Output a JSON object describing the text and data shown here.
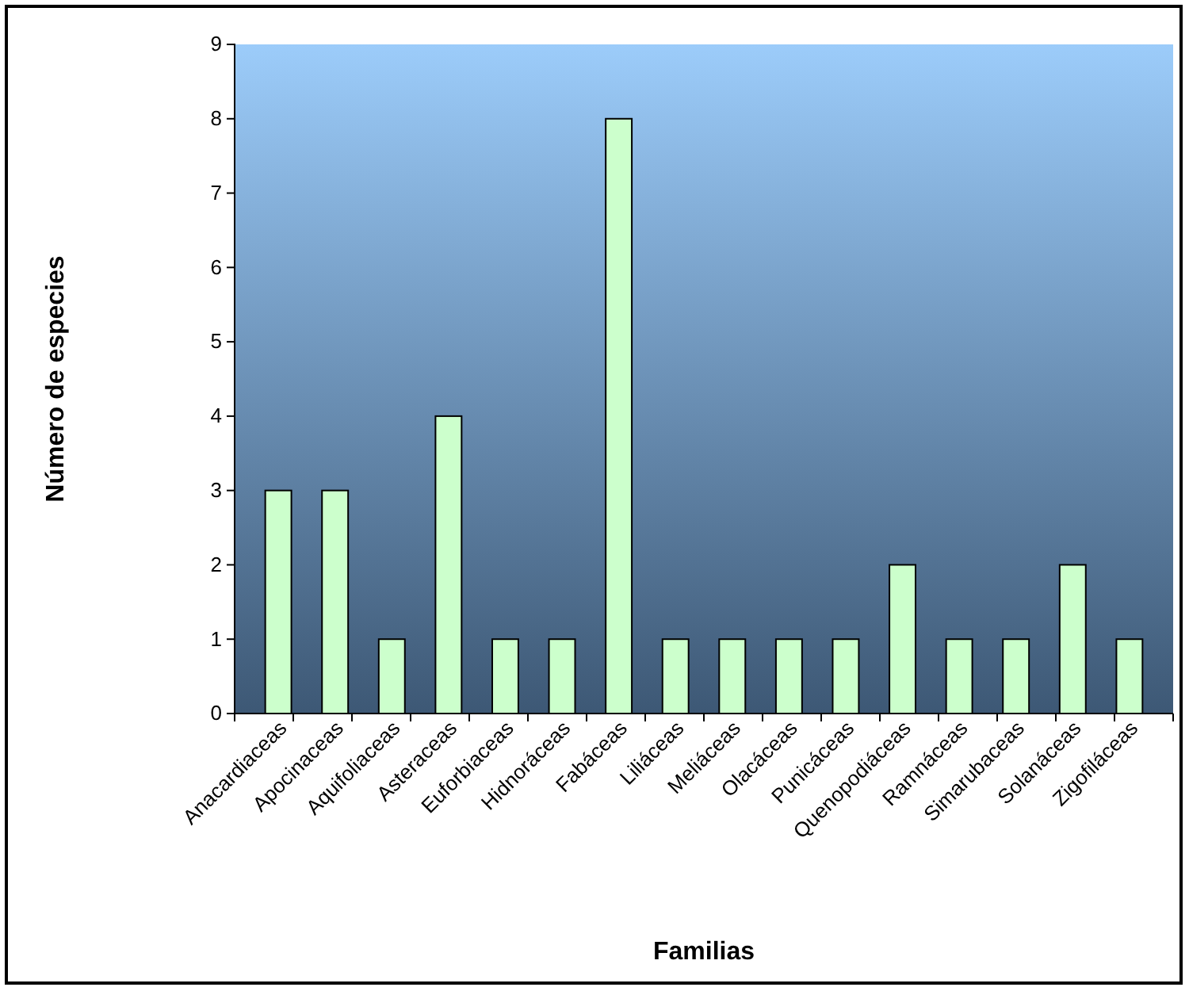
{
  "chart_data": {
    "type": "bar",
    "xlabel": "Familias",
    "ylabel": "Número de especies",
    "categories": [
      "Anacardiaceas",
      "Apocinaceas",
      "Aquifoliaceas",
      "Asteraceas",
      "Euforbiaceas",
      "Hidnoráceas",
      "Fabáceas",
      "Liliáceas",
      "Meliáceas",
      "Olacáceas",
      "Punicáceas",
      "Quenopodiáceas",
      "Ramnáceas",
      "Simarubaceas",
      "Solanáceas",
      "Zigofiláceas"
    ],
    "values": [
      3,
      3,
      1,
      4,
      1,
      1,
      8,
      1,
      1,
      1,
      1,
      2,
      1,
      1,
      2,
      1
    ],
    "color": "#ccffcc",
    "ylim": [
      0,
      9
    ],
    "yticks": [
      0,
      1,
      2,
      3,
      4,
      5,
      6,
      7,
      8,
      9
    ],
    "grid": false
  }
}
